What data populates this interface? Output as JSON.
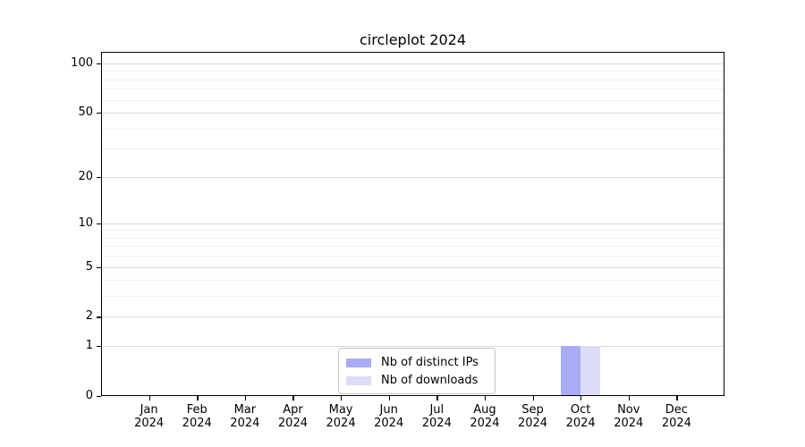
{
  "chart_data": {
    "type": "bar",
    "title": "circleplot 2024",
    "categories": [
      "Jan 2024",
      "Feb 2024",
      "Mar 2024",
      "Apr 2024",
      "May 2024",
      "Jun 2024",
      "Jul 2024",
      "Aug 2024",
      "Sep 2024",
      "Oct 2024",
      "Nov 2024",
      "Dec 2024"
    ],
    "series": [
      {
        "name": "Nb of distinct IPs",
        "color": "#a9abf4",
        "values": [
          0,
          0,
          0,
          0,
          0,
          0,
          0,
          0,
          0,
          1,
          0,
          0
        ]
      },
      {
        "name": "Nb of downloads",
        "color": "#dcdcf8",
        "values": [
          0,
          0,
          0,
          0,
          0,
          0,
          0,
          0,
          0,
          1,
          0,
          0
        ]
      }
    ],
    "xlabel": "",
    "ylabel": "",
    "yscale": "log(1+x)",
    "y_ticks": [
      0,
      1,
      2,
      5,
      10,
      20,
      50,
      100
    ],
    "y_minor_ticks": [
      3,
      4,
      6,
      7,
      8,
      9,
      30,
      40,
      60,
      70,
      80,
      90
    ],
    "ylim": [
      0,
      118
    ],
    "grid": "horizontal",
    "legend_position": "lower center",
    "colors": {
      "axis": "#000000",
      "grid_major": "#d9d9d9",
      "grid_minor": "#efefef",
      "background": "#ffffff"
    }
  }
}
